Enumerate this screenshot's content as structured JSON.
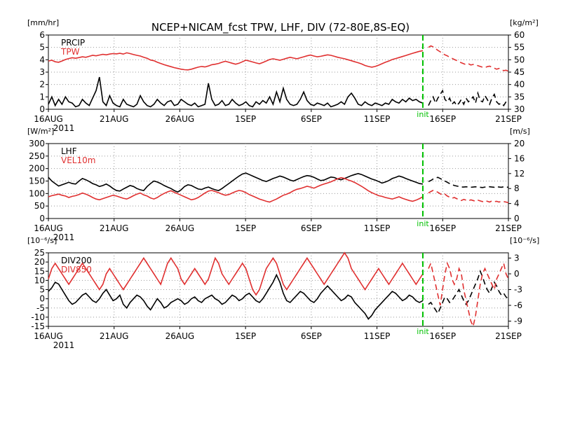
{
  "title": "NCEP+NICAM_fcst TPW, LHF, DIV (72-80E,8S-EQ)",
  "colors": {
    "primary": "#000000",
    "secondary": "#e03030",
    "init_line": "#00c000",
    "grid": "#999999"
  },
  "x_tick_labels": [
    "16AUG",
    "21AUG",
    "26AUG",
    "1SEP",
    "6SEP",
    "11SEP",
    "16SEP",
    "21SEP"
  ],
  "x_year_label": "2011",
  "init_label": "init",
  "chart_data": [
    {
      "type": "line",
      "x_axis": {
        "start": "2011-08-16",
        "end": "2011-09-21",
        "init": "2011-09-13"
      },
      "left_unit": "[mm/hr]",
      "right_unit": "[kg/m²]",
      "left_ticks": [
        "0",
        "1",
        "2",
        "3",
        "4",
        "5",
        "6"
      ],
      "right_ticks": [
        "30",
        "35",
        "40",
        "45",
        "50",
        "55",
        "60"
      ],
      "ylim_left": [
        0,
        6
      ],
      "ylim_right": [
        30,
        60
      ],
      "grid": true,
      "legend_placement": "top-left",
      "series": [
        {
          "name": "PRCIP",
          "axis": "left",
          "color": "#000000",
          "values": [
            0.4,
            1.0,
            0.3,
            0.8,
            0.4,
            1.0,
            0.6,
            0.5,
            0.2,
            0.3,
            0.8,
            0.5,
            0.3,
            0.9,
            1.5,
            2.6,
            0.6,
            0.3,
            1.1,
            0.5,
            0.3,
            0.2,
            0.8,
            0.4,
            0.3,
            0.2,
            0.4,
            1.1,
            0.6,
            0.3,
            0.2,
            0.4,
            0.8,
            0.5,
            0.3,
            0.6,
            0.7,
            0.3,
            0.4,
            0.8,
            0.6,
            0.4,
            0.3,
            0.5,
            0.2,
            0.3,
            0.4,
            2.1,
            0.8,
            0.3,
            0.4,
            0.7,
            0.3,
            0.4,
            0.8,
            0.5,
            0.3,
            0.4,
            0.6,
            0.3,
            0.2,
            0.6,
            0.4,
            0.7,
            0.5,
            1.0,
            0.4,
            1.4,
            0.6,
            1.7,
            0.8,
            0.4,
            0.3,
            0.4,
            0.8,
            1.4,
            0.7,
            0.4,
            0.3,
            0.5,
            0.4,
            0.3,
            0.5,
            0.2,
            0.3,
            0.4,
            0.6,
            0.4,
            1.0,
            1.3,
            0.9,
            0.4,
            0.3,
            0.6,
            0.4,
            0.3,
            0.5,
            0.4,
            0.3,
            0.5,
            0.4,
            0.8,
            0.6,
            0.5,
            0.8,
            0.6,
            0.9,
            0.7,
            0.8,
            0.6,
            0.5
          ],
          "forecast": [
            0.3,
            0.7,
            1.0,
            0.5,
            0.9,
            1.2,
            1.5,
            0.8,
            0.6,
            0.9,
            0.4,
            0.6,
            0.3,
            0.5,
            0.8,
            0.4,
            0.9,
            0.6,
            0.8,
            1.0,
            0.5,
            1.3,
            0.7,
            0.6,
            1.1,
            0.8,
            0.4,
            0.9,
            1.2,
            0.6,
            0.4,
            0.5,
            0.3,
            0.6,
            0.8
          ]
        },
        {
          "name": "TPW",
          "axis": "right",
          "color": "#e03030",
          "values": [
            49.5,
            49.8,
            49.2,
            49.0,
            49.5,
            50.1,
            50.5,
            50.8,
            50.6,
            50.9,
            51.2,
            51.0,
            51.4,
            51.8,
            51.6,
            51.9,
            52.2,
            52.0,
            52.3,
            52.5,
            52.4,
            52.6,
            52.3,
            52.8,
            52.5,
            52.1,
            51.8,
            51.5,
            51.0,
            50.6,
            49.9,
            49.6,
            49.0,
            48.5,
            48.0,
            47.6,
            47.2,
            46.8,
            46.5,
            46.2,
            46.0,
            45.9,
            46.2,
            46.6,
            47.0,
            47.3,
            47.1,
            47.5,
            48.0,
            48.2,
            48.5,
            49.0,
            49.4,
            49.0,
            48.6,
            48.2,
            48.6,
            49.2,
            49.8,
            49.5,
            49.1,
            48.7,
            48.4,
            48.9,
            49.5,
            50.1,
            50.4,
            50.1,
            49.8,
            50.2,
            50.6,
            51.0,
            50.7,
            50.4,
            50.8,
            51.2,
            51.6,
            51.9,
            51.5,
            51.2,
            51.4,
            51.7,
            52.0,
            51.8,
            51.4,
            51.0,
            50.7,
            50.4,
            50.0,
            49.6,
            49.2,
            48.8,
            48.3,
            47.7,
            47.3,
            47.0,
            47.3,
            47.8,
            48.4,
            49.0,
            49.5,
            50.1,
            50.5,
            50.9,
            51.3,
            51.7,
            52.2,
            52.6,
            53.0,
            53.4,
            53.7
          ],
          "forecast": [
            55.0,
            55.6,
            55.2,
            54.5,
            53.8,
            53.2,
            52.6,
            52.0,
            51.6,
            51.0,
            50.6,
            50.1,
            49.7,
            49.2,
            48.8,
            48.4,
            48.0,
            48.4,
            47.9,
            48.1,
            48.0,
            47.6,
            47.3,
            47.0,
            46.8,
            47.2,
            47.4,
            47.0,
            46.6,
            46.2,
            46.5,
            46.0,
            45.6,
            45.8,
            45.3
          ]
        }
      ]
    },
    {
      "type": "line",
      "x_axis": {
        "start": "2011-08-16",
        "end": "2011-09-21",
        "init": "2011-09-13"
      },
      "left_unit": "[W/m²]",
      "right_unit": "[m/s]",
      "left_ticks": [
        "0",
        "50",
        "100",
        "150",
        "200",
        "250",
        "300"
      ],
      "right_ticks": [
        "0",
        "4",
        "8",
        "12",
        "16",
        "20"
      ],
      "ylim_left": [
        0,
        300
      ],
      "ylim_right": [
        0,
        20
      ],
      "grid": true,
      "legend_placement": "top-left",
      "series": [
        {
          "name": "LHF",
          "axis": "left",
          "color": "#000000",
          "values": [
            165,
            150,
            140,
            130,
            135,
            140,
            145,
            140,
            138,
            150,
            160,
            155,
            148,
            140,
            135,
            128,
            132,
            138,
            130,
            120,
            112,
            110,
            118,
            125,
            132,
            128,
            120,
            115,
            112,
            128,
            140,
            150,
            146,
            140,
            132,
            126,
            120,
            112,
            106,
            115,
            128,
            135,
            132,
            125,
            118,
            116,
            122,
            126,
            120,
            115,
            112,
            120,
            130,
            140,
            150,
            160,
            170,
            178,
            182,
            176,
            170,
            164,
            158,
            152,
            148,
            154,
            160,
            165,
            170,
            166,
            160,
            154,
            150,
            156,
            162,
            168,
            172,
            170,
            165,
            158,
            152,
            154,
            160,
            166,
            164,
            158,
            155,
            160,
            166,
            172,
            176,
            180,
            176,
            170,
            164,
            158,
            154,
            148,
            142,
            146,
            152,
            160,
            165,
            170,
            166,
            160,
            155,
            150,
            145,
            140,
            138
          ],
          "forecast": [
            148,
            152,
            158,
            162,
            165,
            160,
            155,
            150,
            145,
            140,
            136,
            132,
            130,
            128,
            126,
            126,
            127,
            126,
            125,
            126,
            127,
            126,
            125,
            124,
            126,
            128,
            127,
            126,
            125,
            128,
            126,
            125,
            127,
            126,
            125
          ]
        },
        {
          "name": "VEL10m",
          "axis": "right",
          "color": "#e03030",
          "values": [
            5.8,
            6.1,
            6.3,
            6.5,
            6.2,
            6.0,
            5.6,
            5.9,
            6.1,
            6.4,
            6.8,
            6.5,
            6.1,
            5.6,
            5.2,
            5.0,
            5.3,
            5.6,
            5.9,
            6.2,
            6.0,
            5.7,
            5.4,
            5.2,
            5.6,
            6.1,
            6.5,
            6.8,
            6.3,
            6.0,
            5.5,
            5.2,
            5.6,
            6.2,
            6.7,
            7.1,
            7.4,
            7.0,
            6.6,
            6.2,
            5.8,
            5.4,
            5.0,
            5.2,
            5.6,
            6.2,
            6.8,
            7.3,
            7.5,
            7.2,
            6.9,
            6.5,
            6.2,
            6.4,
            6.8,
            7.2,
            7.5,
            7.3,
            6.9,
            6.4,
            6.0,
            5.6,
            5.2,
            4.9,
            4.6,
            4.4,
            4.8,
            5.2,
            5.7,
            6.2,
            6.5,
            6.9,
            7.4,
            7.8,
            8.0,
            8.3,
            8.6,
            8.4,
            8.1,
            8.5,
            8.9,
            9.2,
            9.5,
            9.8,
            10.2,
            10.6,
            10.9,
            10.7,
            10.3,
            10.0,
            9.6,
            9.1,
            8.6,
            8.0,
            7.4,
            6.9,
            6.5,
            6.1,
            5.9,
            5.6,
            5.4,
            5.2,
            5.5,
            5.8,
            5.4,
            5.1,
            4.8,
            4.6,
            4.9,
            5.3,
            5.8
          ],
          "forecast": [
            6.8,
            7.2,
            7.5,
            7.3,
            7.0,
            6.6,
            6.2,
            6.5,
            6.0,
            5.7,
            5.4,
            5.6,
            5.3,
            5.0,
            4.8,
            5.1,
            4.9,
            4.7,
            5.0,
            4.8,
            4.6,
            4.9,
            4.7,
            4.5,
            4.8,
            4.6,
            4.4,
            4.7,
            4.5,
            4.6,
            4.4,
            4.6,
            4.5,
            4.4,
            4.2
          ]
        }
      ]
    },
    {
      "type": "line",
      "x_axis": {
        "start": "2011-08-16",
        "end": "2011-09-21",
        "init": "2011-09-13"
      },
      "left_unit": "[10⁻⁶/s]",
      "right_unit": "[10⁻⁶/s]",
      "left_ticks": [
        "-15",
        "-10",
        "-5",
        "0",
        "5",
        "10",
        "15",
        "20",
        "25"
      ],
      "right_ticks": [
        "-9",
        "-6",
        "-3",
        "0",
        "3"
      ],
      "ylim_left": [
        -15,
        25
      ],
      "ylim_right": [
        -10,
        4
      ],
      "grid": true,
      "legend_placement": "top-left",
      "series": [
        {
          "name": "DIV200",
          "axis": "left",
          "color": "#000000",
          "values": [
            4,
            6,
            9,
            8,
            5,
            2,
            -1,
            -3,
            -2,
            0,
            2,
            3,
            1,
            -1,
            -2,
            0,
            3,
            5,
            2,
            -1,
            0,
            2,
            -3,
            -5,
            -2,
            0,
            2,
            1,
            -1,
            -4,
            -6,
            -3,
            0,
            -2,
            -5,
            -4,
            -2,
            -1,
            0,
            -1,
            -3,
            -2,
            0,
            1,
            -1,
            -2,
            0,
            1,
            2,
            0,
            -1,
            -3,
            -2,
            0,
            2,
            1,
            -1,
            0,
            2,
            3,
            1,
            -1,
            -2,
            0,
            3,
            6,
            9,
            13,
            9,
            3,
            -1,
            -2,
            0,
            2,
            4,
            3,
            1,
            -1,
            -2,
            0,
            3,
            5,
            7,
            5,
            3,
            1,
            -1,
            0,
            2,
            1,
            -2,
            -4,
            -6,
            -8,
            -11,
            -9,
            -6,
            -4,
            -2,
            0,
            2,
            4,
            3,
            1,
            -1,
            0,
            2,
            1,
            -1,
            -2,
            -1
          ],
          "forecast": [
            -3,
            -2,
            -4,
            -6,
            -8,
            -5,
            -2,
            1,
            0,
            -2,
            -1,
            1,
            3,
            5,
            2,
            -1,
            -3,
            -1,
            2,
            5,
            8,
            11,
            15,
            12,
            8,
            5,
            3,
            6,
            9,
            7,
            4,
            2,
            3,
            1,
            0
          ]
        },
        {
          "name": "DIV850",
          "axis": "right",
          "color": "#e03030",
          "values": [
            -1,
            1,
            2,
            1,
            0,
            -1,
            -2,
            -1,
            0,
            1,
            2,
            1,
            0,
            -1,
            -2,
            -3,
            -2,
            0,
            1,
            0,
            -1,
            -2,
            -3,
            -2,
            -1,
            0,
            1,
            2,
            3,
            2,
            1,
            0,
            -1,
            -2,
            0,
            2,
            3,
            2,
            1,
            -1,
            -2,
            -1,
            0,
            1,
            0,
            -1,
            -2,
            -1,
            1,
            3,
            2,
            0,
            -1,
            -2,
            -1,
            0,
            1,
            2,
            1,
            -1,
            -3,
            -4,
            -3,
            -1,
            1,
            2,
            3,
            2,
            0,
            -2,
            -3,
            -2,
            -1,
            0,
            1,
            2,
            3,
            2,
            1,
            0,
            -1,
            -2,
            -1,
            0,
            1,
            2,
            3,
            4,
            3,
            1,
            0,
            -1,
            -2,
            -3,
            -2,
            -1,
            0,
            1,
            0,
            -1,
            -2,
            -1,
            0,
            1,
            2,
            1,
            0,
            -1,
            -2,
            -1,
            0
          ],
          "forecast": [
            1,
            2,
            0,
            -2,
            -4,
            -6,
            -3,
            0,
            2,
            1,
            -1,
            -2,
            -1,
            1,
            0,
            -3,
            -5,
            -7,
            -9,
            -10,
            -8,
            -5,
            -2,
            0,
            1,
            0,
            -1,
            -2,
            -3,
            -1,
            0,
            1,
            2,
            0,
            -1
          ]
        }
      ]
    }
  ]
}
